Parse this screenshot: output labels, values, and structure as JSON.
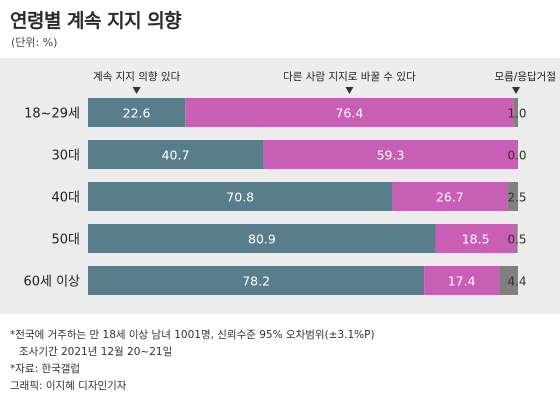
{
  "header": {
    "title": "연령별 계속 지지 의향",
    "unit": "(단위: %)"
  },
  "chart_data": {
    "type": "bar",
    "stacked": true,
    "orientation": "horizontal",
    "xlim": [
      0,
      100
    ],
    "legend_placement": "top",
    "categories": [
      "18~29세",
      "30대",
      "40대",
      "50대",
      "60세 이상"
    ],
    "series": [
      {
        "name": "계속 지지 의향 있다",
        "color": "#5a7d8c",
        "values": [
          22.6,
          40.7,
          70.8,
          80.9,
          78.2
        ],
        "labels": [
          "22.6",
          "40.7",
          "70.8",
          "80.9",
          "78.2"
        ]
      },
      {
        "name": "다른 사람 지지로 바꿀 수 있다",
        "color": "#c95fb5",
        "values": [
          76.4,
          59.3,
          26.7,
          18.5,
          17.4
        ],
        "labels": [
          "76.4",
          "59.3",
          "26.7",
          "18.5",
          "17.4"
        ]
      },
      {
        "name": "모름/응답거절",
        "color": "#808080",
        "values": [
          1.0,
          0.0,
          2.5,
          0.5,
          4.4
        ],
        "labels": [
          "1.0",
          "0.0",
          "2.5",
          "0.5",
          "4.4"
        ]
      }
    ]
  },
  "notes": {
    "line1": "*전국에 거주하는 만 18세 이상 남녀 1001명, 신뢰수준 95% 오차범위(±3.1%P)",
    "line2": "조사기간 2021년 12월 20~21일",
    "source": "*자료: 한국갤럽",
    "graphic": "그래픽: 이지혜 디자인기자"
  },
  "colors": {
    "panel": "#ececec",
    "support": "#5a7d8c",
    "switch": "#c95fb5",
    "dontknow": "#808080"
  }
}
